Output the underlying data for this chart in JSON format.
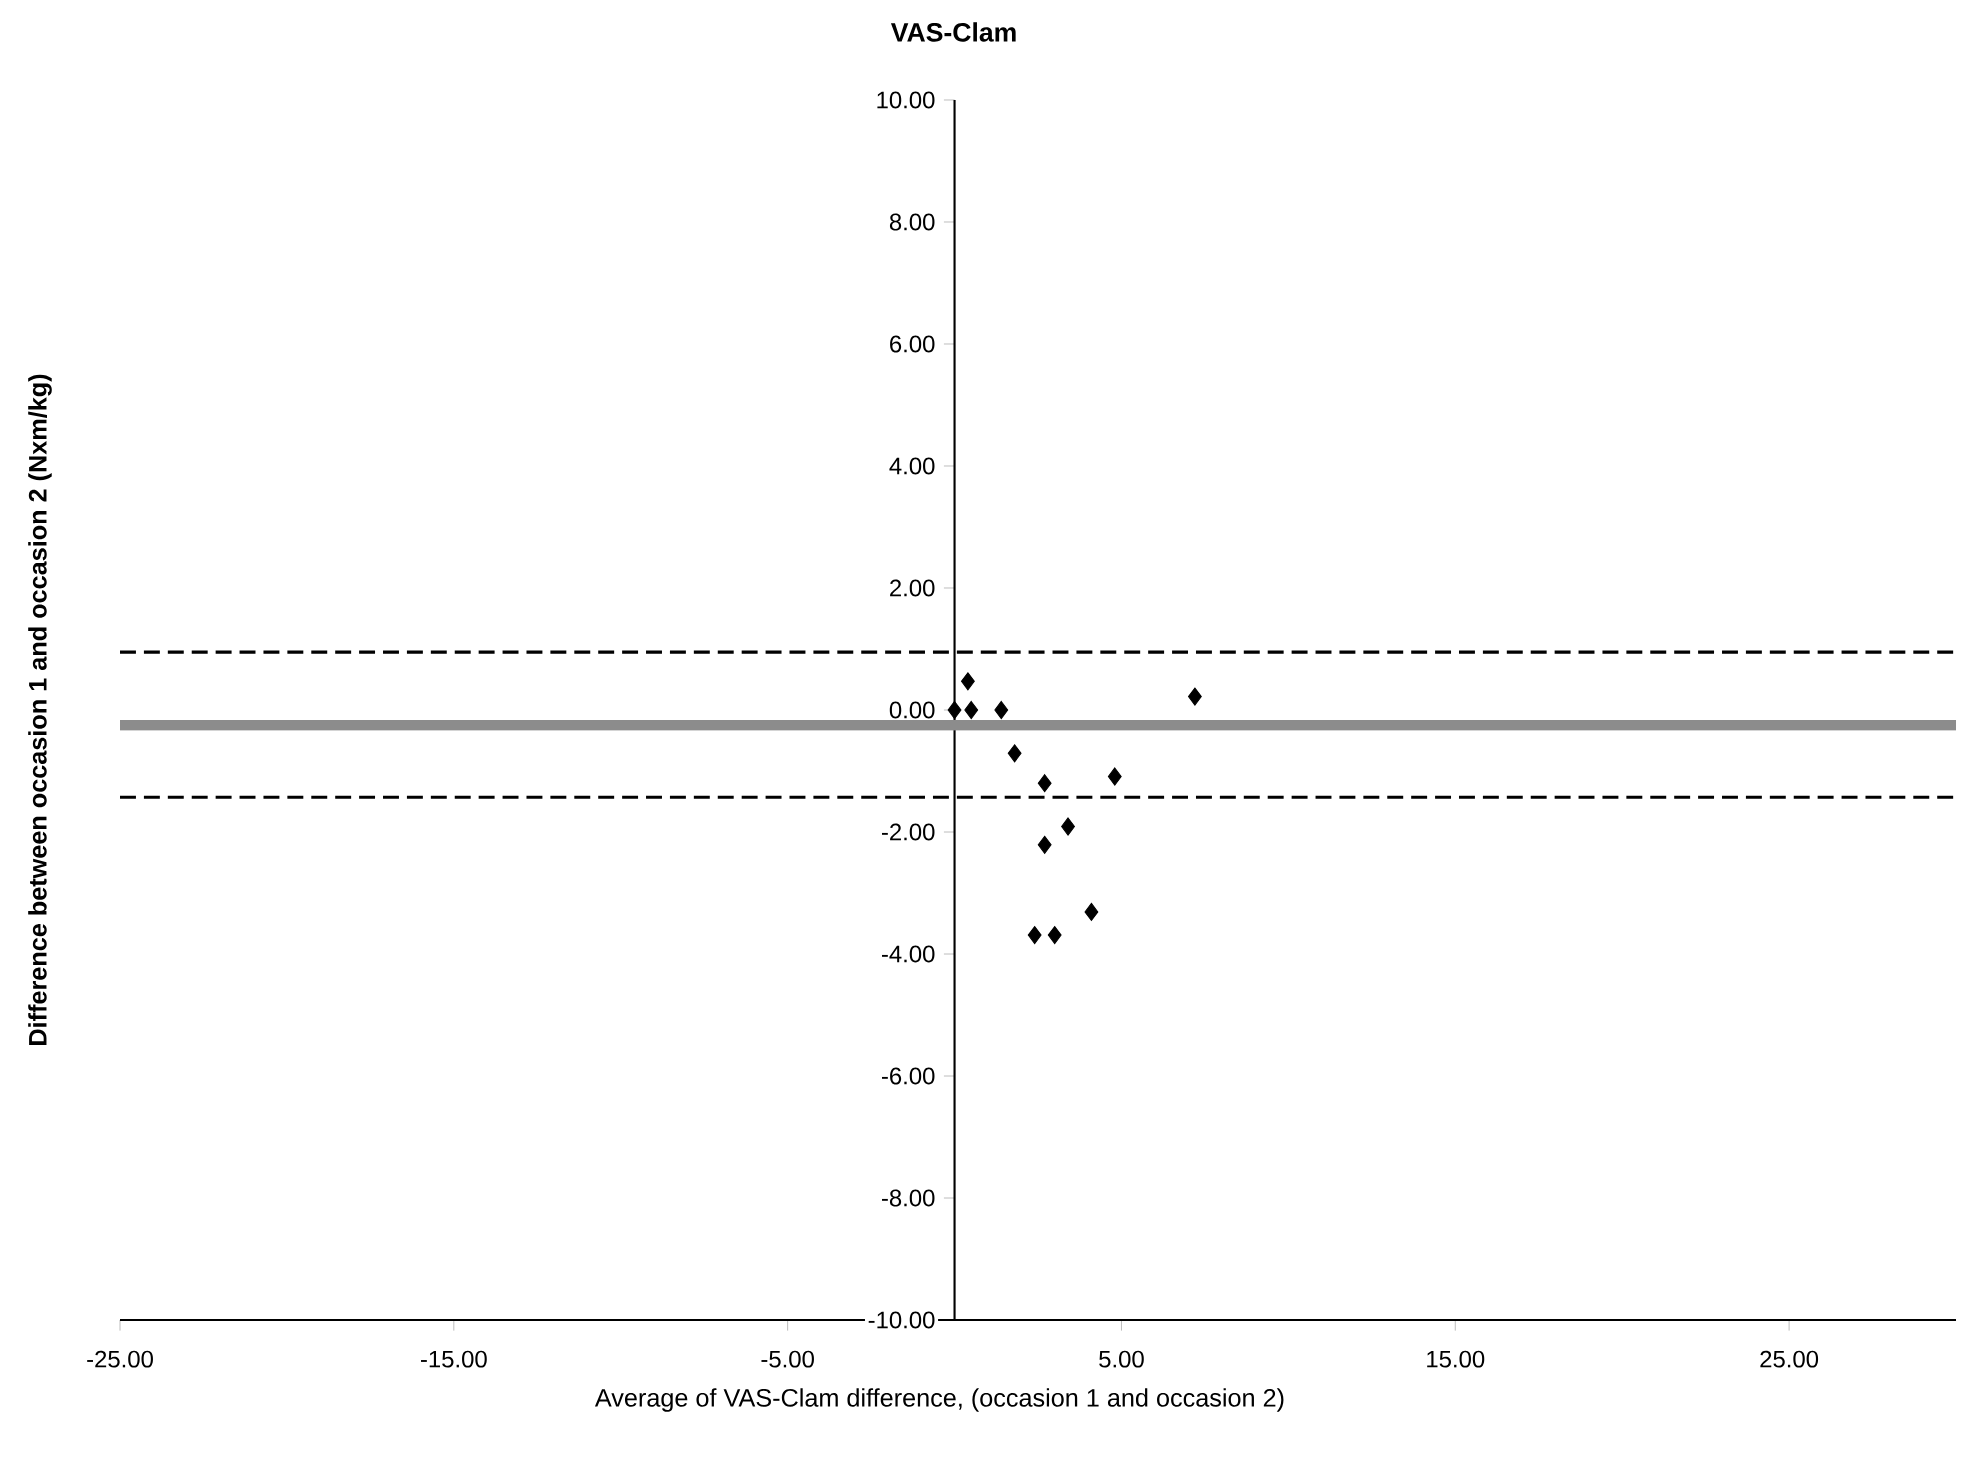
{
  "chart_data": {
    "type": "scatter",
    "title": "VAS-Clam",
    "xlabel": "Average of VAS-Clam difference, (occasion 1 and occasion 2)",
    "ylabel": "Difference between occasion 1 and occasion 2 (Nxm/kg)",
    "series": [
      {
        "color": "#000000",
        "x": [
          0,
          0.5,
          0.4,
          1.4,
          1.8,
          2.7,
          4.8,
          7.2,
          3.4,
          2.7,
          4.1,
          2.4,
          3.0
        ],
        "values": [
          0,
          0,
          0.47,
          0,
          -0.71,
          -1.2,
          -1.09,
          0.22,
          -1.91,
          -2.21,
          -3.31,
          -3.69,
          -3.69
        ]
      }
    ],
    "marker": "diamond",
    "xlim": [
      -25,
      30
    ],
    "ylim": [
      -10,
      10
    ],
    "xticks": [
      {
        "value": -25,
        "label": "-25.00"
      },
      {
        "value": -15,
        "label": "-15.00"
      },
      {
        "value": -5,
        "label": "-5.00"
      },
      {
        "value": 5,
        "label": "5.00"
      },
      {
        "value": 15,
        "label": "15.00"
      },
      {
        "value": 25,
        "label": "25.00"
      }
    ],
    "yticks": [
      {
        "value": -10,
        "label": "-10.00"
      },
      {
        "value": -8,
        "label": "-8.00"
      },
      {
        "value": -6,
        "label": "-6.00"
      },
      {
        "value": -4,
        "label": "-4.00"
      },
      {
        "value": -2,
        "label": "-2.00"
      },
      {
        "value": 0,
        "label": "0.00"
      },
      {
        "value": 2,
        "label": "2.00"
      },
      {
        "value": 4,
        "label": "4.00"
      },
      {
        "value": 6,
        "label": "6.00"
      },
      {
        "value": 8,
        "label": "8.00"
      },
      {
        "value": 10,
        "label": "10.00"
      }
    ],
    "ref_lines": [
      {
        "axis": "y",
        "value": -0.25,
        "color": "#8c8c8c",
        "line_style": "solid"
      },
      {
        "axis": "y",
        "value": 0.95,
        "color": "#000000",
        "line_style": "dashed"
      },
      {
        "axis": "y",
        "value": -1.43,
        "color": "#000000",
        "line_style": "dashed"
      }
    ]
  }
}
